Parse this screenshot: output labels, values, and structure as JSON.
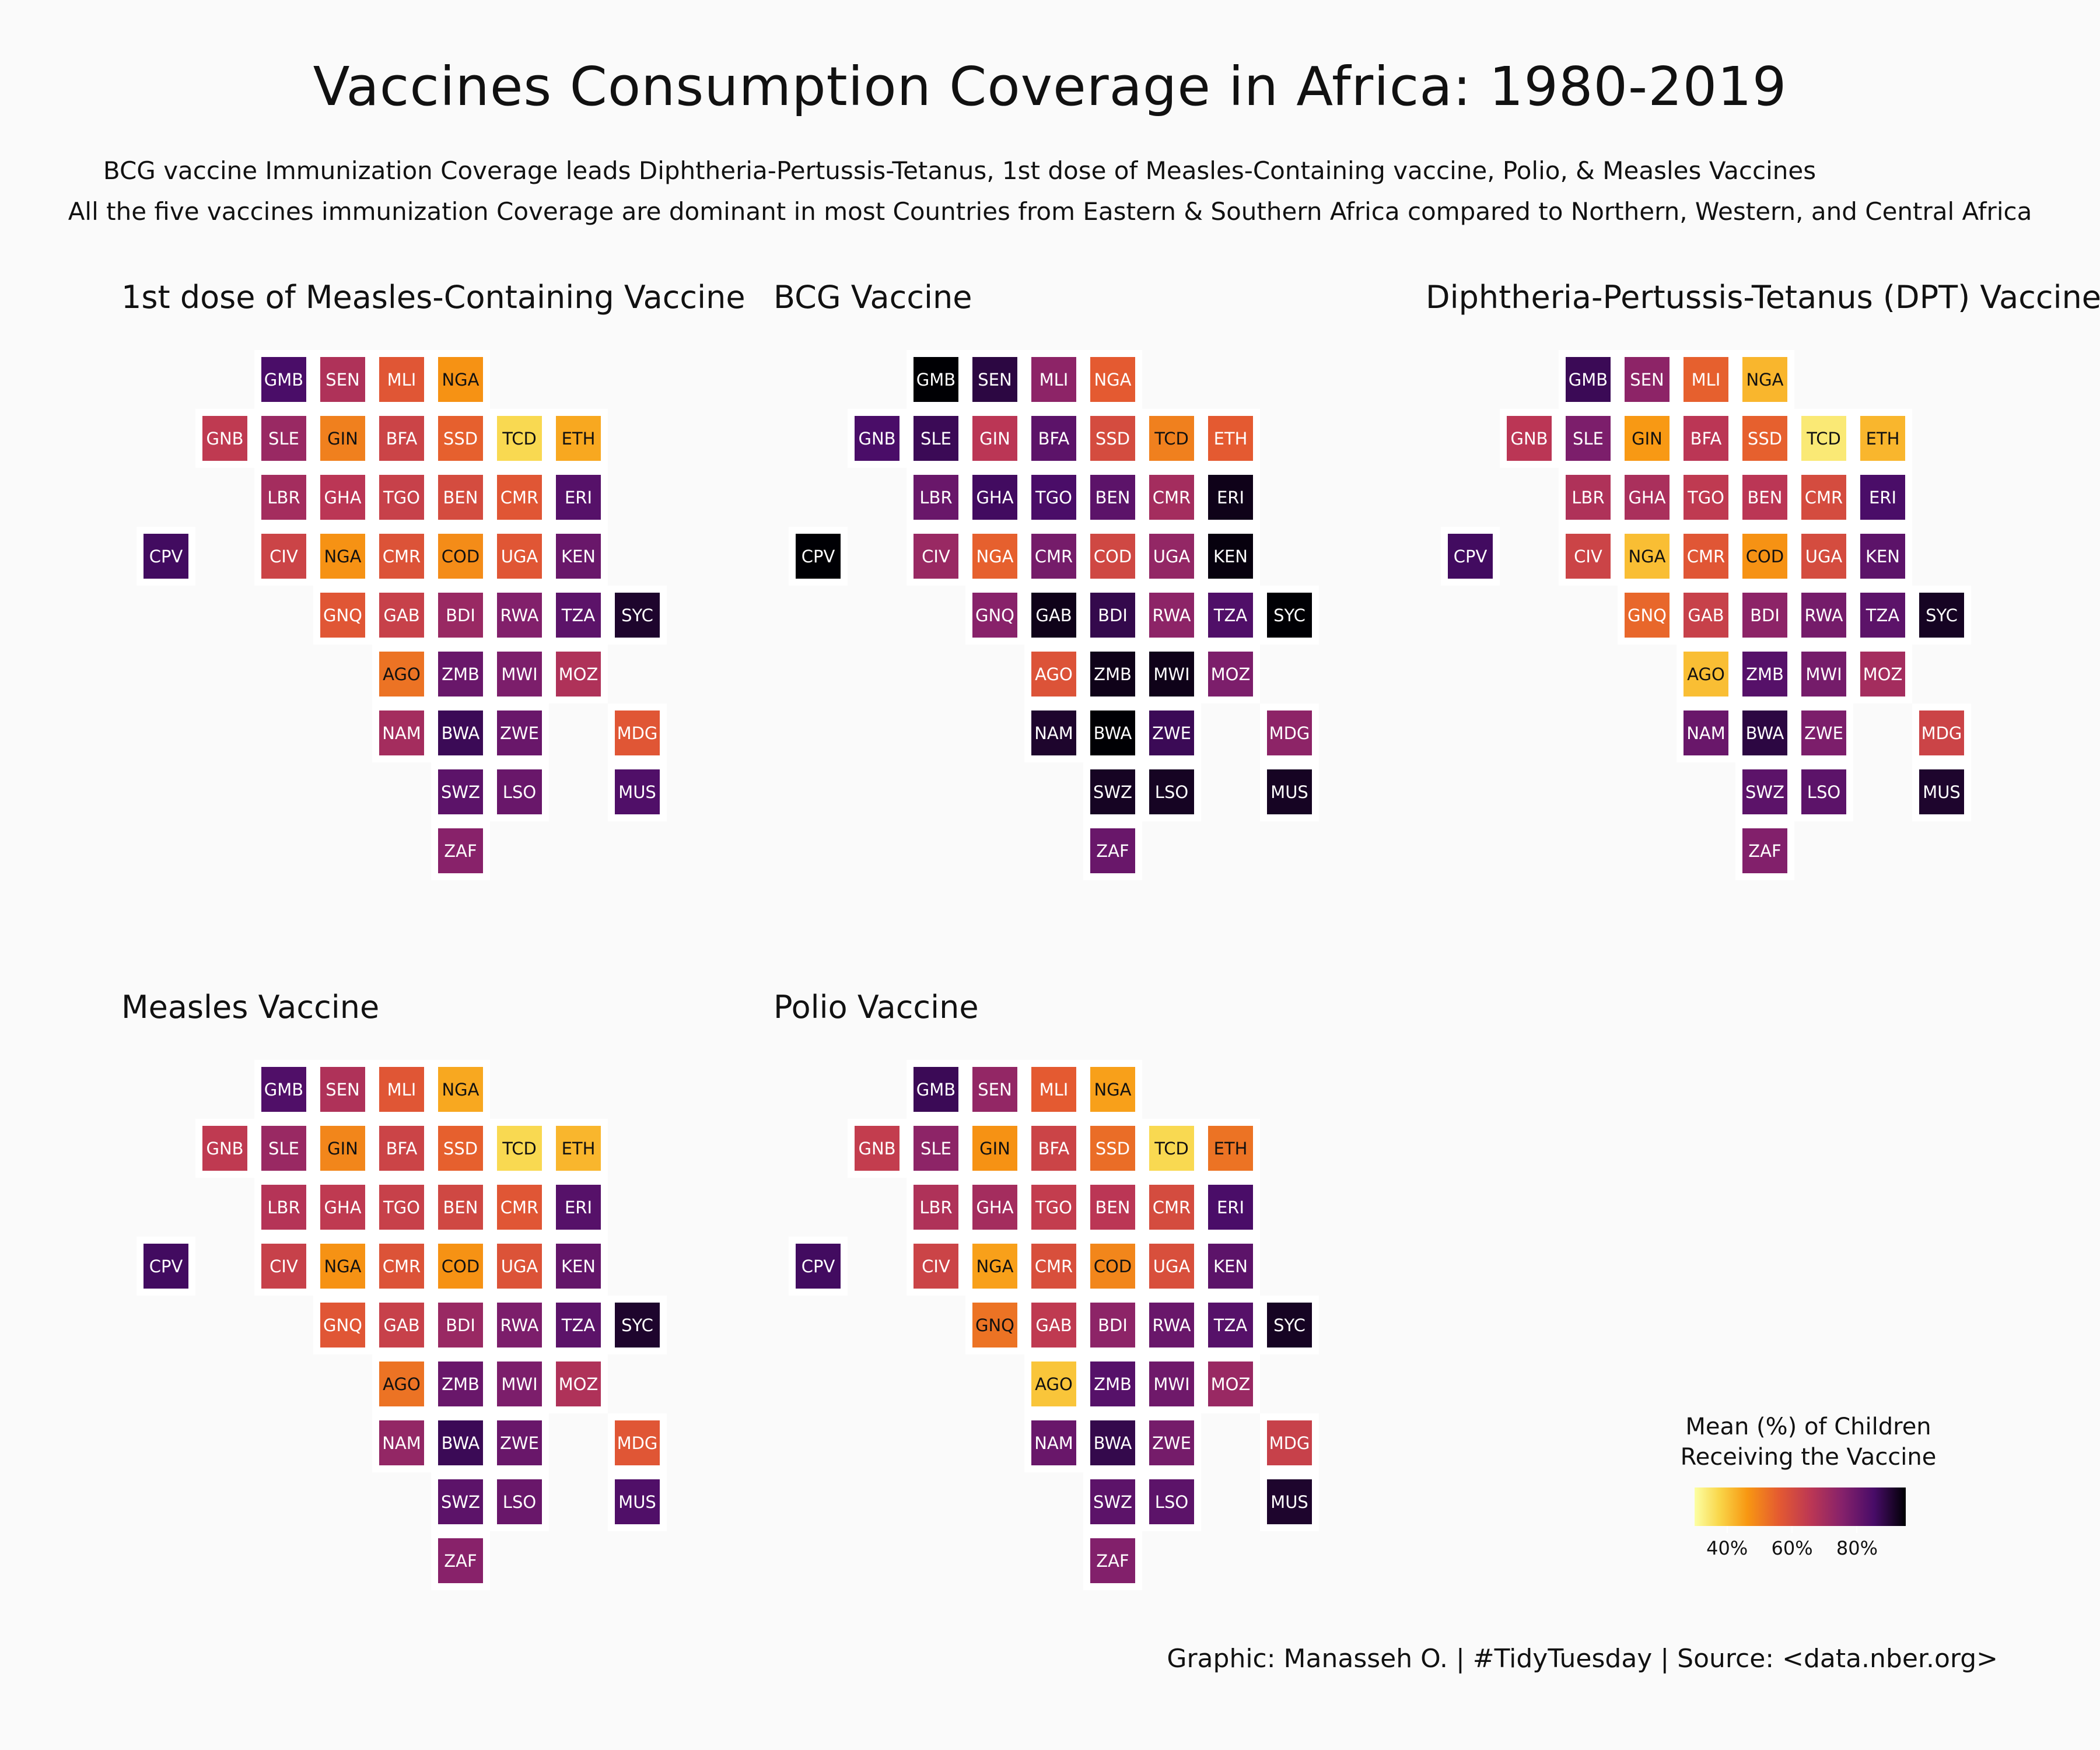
{
  "title": "Vaccines Consumption Coverage in Africa: 1980-2019",
  "subtitle_1": "BCG vaccine Immunization Coverage leads Diphtheria-Pertussis-Tetanus, 1st dose of Measles-Containing vaccine, Polio, & Measles Vaccines",
  "subtitle_2": "All the five vaccines immunization Coverage are dominant in most Countries from Eastern & Southern Africa compared to Northern, Western, and Central Africa",
  "caption": "Graphic: Manasseh O. | #TidyTuesday | Source: <data.nber.org>",
  "legend": {
    "title_line1": "Mean (%) of Children",
    "title_line2": "Receiving the Vaccine",
    "ticks": [
      "40%",
      "60%",
      "80%"
    ],
    "range": [
      30,
      95
    ]
  },
  "chart_data": {
    "type": "heatmap",
    "colormap": "inferno (reversed): light yellow = low, black = high",
    "countries": [
      {
        "code": "GMB",
        "col": 2,
        "row": 0
      },
      {
        "code": "SEN",
        "col": 3,
        "row": 0
      },
      {
        "code": "MLI",
        "col": 4,
        "row": 0
      },
      {
        "code": "NGA",
        "col": 5,
        "row": 0
      },
      {
        "code": "GNB",
        "col": 1,
        "row": 1
      },
      {
        "code": "SLE",
        "col": 2,
        "row": 1
      },
      {
        "code": "GIN",
        "col": 3,
        "row": 1
      },
      {
        "code": "BFA",
        "col": 4,
        "row": 1
      },
      {
        "code": "SSD",
        "col": 5,
        "row": 1
      },
      {
        "code": "TCD",
        "col": 6,
        "row": 1
      },
      {
        "code": "ETH",
        "col": 7,
        "row": 1
      },
      {
        "code": "LBR",
        "col": 2,
        "row": 2
      },
      {
        "code": "GHA",
        "col": 3,
        "row": 2
      },
      {
        "code": "TGO",
        "col": 4,
        "row": 2
      },
      {
        "code": "BEN",
        "col": 5,
        "row": 2
      },
      {
        "code": "CMR",
        "col": 6,
        "row": 2
      },
      {
        "code": "ERI",
        "col": 7,
        "row": 2
      },
      {
        "code": "CPV",
        "col": 0,
        "row": 3
      },
      {
        "code": "CIV",
        "col": 2,
        "row": 3
      },
      {
        "code": "NGA",
        "col": 3,
        "row": 3
      },
      {
        "code": "CMR",
        "col": 4,
        "row": 3
      },
      {
        "code": "COD",
        "col": 5,
        "row": 3
      },
      {
        "code": "UGA",
        "col": 6,
        "row": 3
      },
      {
        "code": "KEN",
        "col": 7,
        "row": 3
      },
      {
        "code": "GNQ",
        "col": 3,
        "row": 4
      },
      {
        "code": "GAB",
        "col": 4,
        "row": 4
      },
      {
        "code": "BDI",
        "col": 5,
        "row": 4
      },
      {
        "code": "RWA",
        "col": 6,
        "row": 4
      },
      {
        "code": "TZA",
        "col": 7,
        "row": 4
      },
      {
        "code": "SYC",
        "col": 8,
        "row": 4
      },
      {
        "code": "AGO",
        "col": 4,
        "row": 5
      },
      {
        "code": "ZMB",
        "col": 5,
        "row": 5
      },
      {
        "code": "MWI",
        "col": 6,
        "row": 5
      },
      {
        "code": "MOZ",
        "col": 7,
        "row": 5
      },
      {
        "code": "NAM",
        "col": 4,
        "row": 6
      },
      {
        "code": "BWA",
        "col": 5,
        "row": 6
      },
      {
        "code": "ZWE",
        "col": 6,
        "row": 6
      },
      {
        "code": "MDG",
        "col": 8,
        "row": 6
      },
      {
        "code": "SWZ",
        "col": 5,
        "row": 7
      },
      {
        "code": "LSO",
        "col": 6,
        "row": 7
      },
      {
        "code": "MUS",
        "col": 8,
        "row": 7
      },
      {
        "code": "ZAF",
        "col": 5,
        "row": 8
      }
    ],
    "panels": [
      {
        "title": "1st dose of Measles-Containing Vaccine",
        "values": [
          85,
          68,
          57,
          47,
          65,
          72,
          50,
          62,
          55,
          37,
          44,
          70,
          66,
          63,
          60,
          57,
          83,
          86,
          62,
          47,
          58,
          48,
          57,
          80,
          57,
          63,
          72,
          76,
          82,
          91,
          52,
          80,
          77,
          68,
          70,
          87,
          80,
          57,
          82,
          80,
          84,
          75
        ]
      },
      {
        "title": "BCG Vaccine",
        "values": [
          96,
          89,
          74,
          56,
          85,
          87,
          66,
          82,
          60,
          50,
          56,
          80,
          86,
          85,
          82,
          70,
          93,
          97,
          72,
          55,
          78,
          61,
          73,
          94,
          75,
          93,
          88,
          74,
          84,
          96,
          58,
          93,
          93,
          77,
          91,
          97,
          87,
          74,
          92,
          92,
          92,
          80
        ]
      },
      {
        "title": "Diphtheria-Pertussis-Tetanus (DPT) Vaccine",
        "values": [
          87,
          74,
          55,
          42,
          66,
          77,
          46,
          66,
          55,
          34,
          42,
          68,
          69,
          65,
          66,
          60,
          85,
          86,
          62,
          41,
          57,
          47,
          60,
          82,
          54,
          63,
          74,
          78,
          82,
          92,
          41,
          83,
          78,
          70,
          80,
          89,
          77,
          62,
          82,
          82,
          91,
          76
        ]
      },
      {
        "title": "Measles Vaccine",
        "values": [
          84,
          68,
          57,
          44,
          65,
          72,
          49,
          62,
          55,
          37,
          42,
          67,
          65,
          63,
          61,
          57,
          83,
          86,
          63,
          47,
          58,
          47,
          58,
          81,
          57,
          63,
          72,
          77,
          82,
          91,
          52,
          80,
          77,
          68,
          73,
          87,
          80,
          57,
          82,
          80,
          84,
          75
        ]
      },
      {
        "title": "Polio Vaccine",
        "values": [
          87,
          73,
          56,
          45,
          64,
          74,
          47,
          62,
          53,
          37,
          52,
          68,
          70,
          64,
          66,
          60,
          85,
          86,
          62,
          45,
          59,
          49,
          59,
          82,
          52,
          65,
          74,
          80,
          83,
          92,
          40,
          83,
          79,
          72,
          80,
          88,
          78,
          63,
          82,
          82,
          91,
          76
        ]
      }
    ]
  }
}
